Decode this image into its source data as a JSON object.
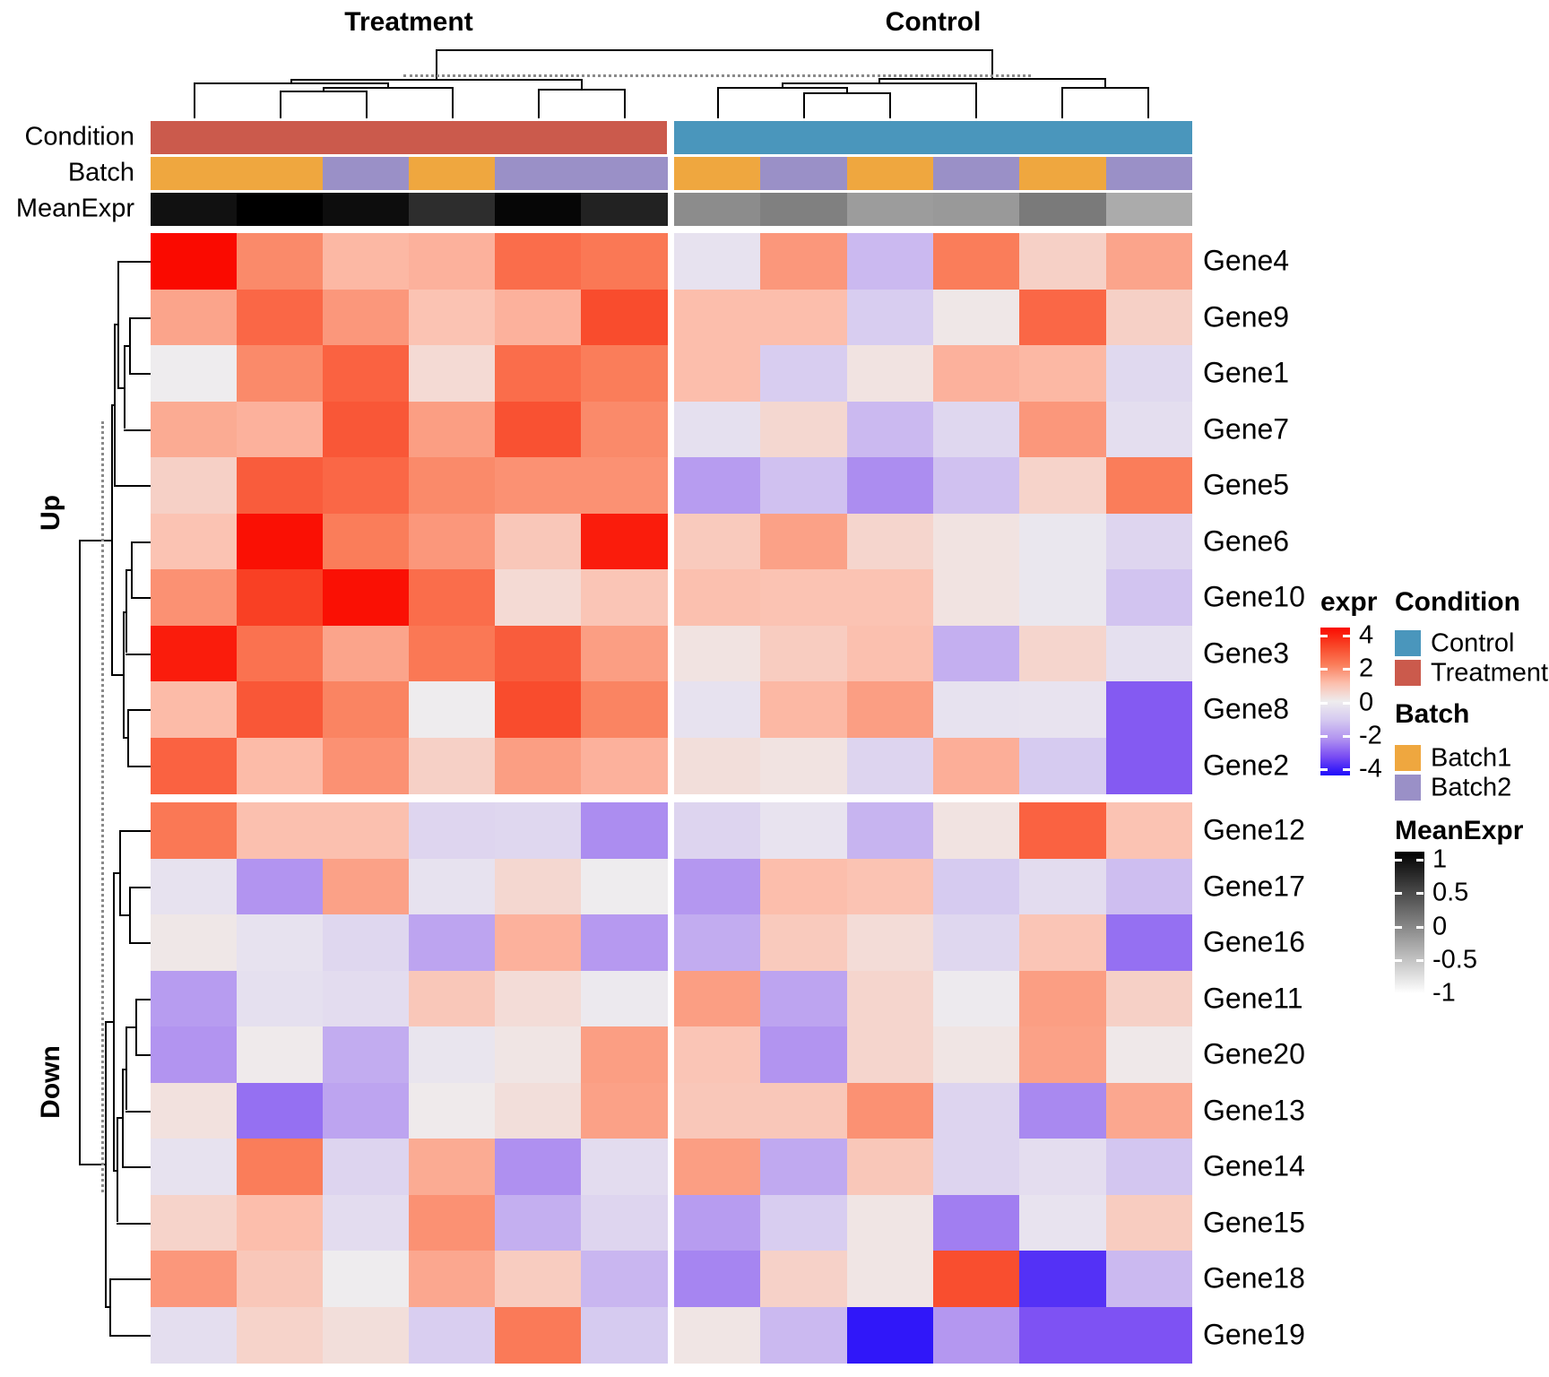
{
  "chart_data": {
    "type": "heatmap",
    "value_name": "expr",
    "col_split": {
      "treatment_label": "Treatment",
      "control_label": "Control"
    },
    "row_split": {
      "up_label": "Up",
      "down_label": "Down"
    },
    "annotations": {
      "labels": [
        "Condition",
        "Batch",
        "MeanExpr"
      ],
      "condition": {
        "treatment": "Treatment",
        "control": "Control"
      },
      "batch": {
        "treatment": [
          "Batch1",
          "Batch1",
          "Batch2",
          "Batch1",
          "Batch2",
          "Batch2"
        ],
        "control": [
          "Batch1",
          "Batch2",
          "Batch1",
          "Batch2",
          "Batch1",
          "Batch2"
        ]
      },
      "mean_expr": {
        "treatment": [
          0.87,
          1.0,
          0.9,
          0.65,
          0.95,
          0.73
        ],
        "control": [
          -0.1,
          0.0,
          -0.22,
          -0.2,
          0.04,
          -0.34
        ]
      }
    },
    "rows": [
      {
        "gene": "Gene4",
        "group": "Up",
        "treatment": [
          4.0,
          1.8,
          1.1,
          1.2,
          2.3,
          2.1
        ],
        "control": [
          -0.3,
          1.6,
          -1.3,
          2.0,
          0.6,
          1.4
        ]
      },
      {
        "gene": "Gene9",
        "group": "Up",
        "treatment": [
          1.4,
          2.4,
          1.6,
          0.9,
          1.2,
          2.9
        ],
        "control": [
          1.0,
          1.0,
          -0.9,
          0.1,
          2.4,
          0.6
        ]
      },
      {
        "gene": "Gene1",
        "group": "Up",
        "treatment": [
          0.0,
          1.8,
          2.5,
          0.4,
          2.3,
          2.0
        ],
        "control": [
          1.0,
          -0.9,
          0.2,
          1.2,
          1.1,
          -0.55
        ]
      },
      {
        "gene": "Gene7",
        "group": "Up",
        "treatment": [
          1.3,
          1.2,
          2.7,
          1.5,
          2.8,
          1.8
        ],
        "control": [
          -0.35,
          0.45,
          -1.3,
          -0.6,
          1.6,
          -0.4
        ]
      },
      {
        "gene": "Gene5",
        "group": "Up",
        "treatment": [
          0.6,
          2.6,
          2.4,
          1.8,
          1.7,
          1.7
        ],
        "control": [
          -1.85,
          -1.15,
          -2.1,
          -1.15,
          0.55,
          2.0
        ]
      },
      {
        "gene": "Gene6",
        "group": "Up",
        "treatment": [
          0.9,
          3.9,
          2.0,
          1.6,
          0.8,
          3.7
        ],
        "control": [
          0.75,
          1.45,
          0.5,
          0.2,
          -0.15,
          -0.65
        ]
      },
      {
        "gene": "Gene10",
        "group": "Up",
        "treatment": [
          1.7,
          3.1,
          3.9,
          2.3,
          0.4,
          0.85
        ],
        "control": [
          0.95,
          0.9,
          0.9,
          0.2,
          -0.15,
          -1.1
        ]
      },
      {
        "gene": "Gene3",
        "group": "Up",
        "treatment": [
          3.7,
          2.2,
          1.4,
          2.1,
          2.6,
          1.5
        ],
        "control": [
          0.2,
          0.7,
          0.95,
          -1.5,
          0.5,
          -0.35
        ]
      },
      {
        "gene": "Gene8",
        "group": "Up",
        "treatment": [
          1.05,
          2.7,
          1.9,
          0.0,
          2.9,
          1.9
        ],
        "control": [
          -0.3,
          1.1,
          1.5,
          -0.3,
          -0.25,
          -2.8
        ]
      },
      {
        "gene": "Gene2",
        "group": "Up",
        "treatment": [
          2.5,
          1.05,
          1.7,
          0.6,
          1.5,
          1.2
        ],
        "control": [
          0.3,
          0.2,
          -0.7,
          1.25,
          -0.95,
          -2.8
        ]
      },
      {
        "gene": "Gene12",
        "group": "Down",
        "treatment": [
          2.1,
          0.95,
          0.95,
          -0.65,
          -0.6,
          -2.1
        ],
        "control": [
          -0.7,
          -0.25,
          -1.4,
          0.2,
          2.5,
          0.9
        ]
      },
      {
        "gene": "Gene17",
        "group": "Down",
        "treatment": [
          -0.3,
          -2.0,
          1.45,
          -0.3,
          0.45,
          0.0
        ],
        "control": [
          -1.95,
          1.0,
          0.9,
          -0.95,
          -0.45,
          -1.2
        ]
      },
      {
        "gene": "Gene16",
        "group": "Down",
        "treatment": [
          0.1,
          -0.3,
          -0.6,
          -1.7,
          1.2,
          -1.9
        ],
        "control": [
          -1.55,
          0.75,
          0.35,
          -0.6,
          0.85,
          -2.5
        ]
      },
      {
        "gene": "Gene11",
        "group": "Down",
        "treatment": [
          -1.85,
          -0.35,
          -0.45,
          0.8,
          0.35,
          -0.1
        ],
        "control": [
          1.5,
          -1.7,
          0.5,
          -0.05,
          1.5,
          0.6
        ]
      },
      {
        "gene": "Gene20",
        "group": "Down",
        "treatment": [
          -2.0,
          0.05,
          -1.55,
          -0.2,
          0.15,
          1.5
        ],
        "control": [
          0.85,
          -2.0,
          0.5,
          0.15,
          1.45,
          0.08
        ]
      },
      {
        "gene": "Gene13",
        "group": "Down",
        "treatment": [
          0.25,
          -2.5,
          -1.7,
          0.05,
          0.3,
          1.45
        ],
        "control": [
          0.8,
          0.8,
          1.7,
          -0.68,
          -2.15,
          1.35
        ]
      },
      {
        "gene": "Gene14",
        "group": "Down",
        "treatment": [
          -0.3,
          2.0,
          -0.7,
          1.3,
          -2.05,
          -0.45
        ],
        "control": [
          1.5,
          -1.6,
          0.8,
          -0.68,
          -0.42,
          -1.05
        ]
      },
      {
        "gene": "Gene15",
        "group": "Down",
        "treatment": [
          0.55,
          1.0,
          -0.45,
          1.7,
          -1.5,
          -0.65
        ],
        "control": [
          -1.85,
          -0.9,
          0.15,
          -2.3,
          -0.25,
          0.7
        ]
      },
      {
        "gene": "Gene18",
        "group": "Down",
        "treatment": [
          1.6,
          0.8,
          0.0,
          1.35,
          0.7,
          -1.35
        ],
        "control": [
          -2.2,
          0.58,
          0.15,
          2.85,
          -3.4,
          -1.3
        ]
      },
      {
        "gene": "Gene19",
        "group": "Down",
        "treatment": [
          -0.4,
          0.55,
          0.3,
          -0.85,
          2.05,
          -0.95
        ],
        "control": [
          0.15,
          -1.3,
          -3.8,
          -1.95,
          -2.9,
          -2.9
        ]
      }
    ],
    "color_scale": {
      "title": "expr",
      "domain": [
        -4,
        4
      ],
      "ticks": [
        "4",
        "2",
        "0",
        "-2",
        "-4"
      ],
      "tick_values": [
        4,
        2,
        0,
        -2,
        -4
      ],
      "stop_values": [
        -4,
        -3,
        -2,
        -1,
        0,
        1,
        2,
        3,
        4
      ],
      "stop_colors": [
        "#1E0AFA",
        "#784BF3",
        "#B294F0",
        "#D5C9F0",
        "#EEECEE",
        "#FCBEAC",
        "#FA7D5A",
        "#F94628",
        "#FA0A00"
      ]
    },
    "mean_scale": {
      "title": "MeanExpr",
      "domain": [
        -1,
        1
      ],
      "ticks": [
        "1",
        "0.5",
        "0",
        "-0.5",
        "-1"
      ],
      "tick_values": [
        1,
        0.5,
        0,
        -0.5,
        -1
      ],
      "top_color": "#000000",
      "bottom_color": "#ffffff"
    },
    "legends": {
      "expr_title": "expr",
      "condition_title": "Condition",
      "condition_items": [
        {
          "label": "Control",
          "color": "#4A96BC"
        },
        {
          "label": "Treatment",
          "color": "#CB5A4C"
        }
      ],
      "batch_title": "Batch",
      "batch_items": [
        {
          "label": "Batch1",
          "color": "#EFA73F"
        },
        {
          "label": "Batch2",
          "color": "#9A90C7"
        }
      ],
      "meanexpr_title": "MeanExpr"
    },
    "colors": {
      "condition_treatment": "#CB5A4C",
      "condition_control": "#4A96BC",
      "batch1": "#EFA73F",
      "batch2": "#9A90C7"
    },
    "dendrograms": {
      "columns": [
        [
          216,
          92,
          216,
          132
        ],
        [
          312,
          101,
          312,
          132
        ],
        [
          408,
          101,
          408,
          132
        ],
        [
          504,
          97,
          504,
          132
        ],
        [
          600,
          99,
          600,
          132
        ],
        [
          696,
          99,
          696,
          132
        ],
        [
          312,
          101,
          408,
          101
        ],
        [
          360,
          97,
          360,
          101
        ],
        [
          360,
          97,
          504,
          97
        ],
        [
          432,
          92,
          432,
          97
        ],
        [
          216,
          92,
          432,
          92
        ],
        [
          600,
          99,
          696,
          99
        ],
        [
          324,
          88,
          324,
          92
        ],
        [
          648,
          88,
          648,
          99
        ],
        [
          324,
          88,
          648,
          88
        ],
        [
          486,
          55,
          486,
          88
        ],
        [
          486,
          55,
          1106,
          55
        ],
        [
          1106,
          55,
          1106,
          87
        ],
        [
          800,
          97,
          800,
          132
        ],
        [
          896,
          103,
          896,
          132
        ],
        [
          992,
          103,
          992,
          132
        ],
        [
          1088,
          92,
          1088,
          132
        ],
        [
          1184,
          97,
          1184,
          132
        ],
        [
          1280,
          97,
          1280,
          132
        ],
        [
          896,
          103,
          992,
          103
        ],
        [
          944,
          97,
          944,
          103
        ],
        [
          800,
          97,
          944,
          97
        ],
        [
          872,
          92,
          872,
          97
        ],
        [
          872,
          92,
          1088,
          92
        ],
        [
          1184,
          97,
          1280,
          97
        ],
        [
          980,
          87,
          980,
          92
        ],
        [
          1232,
          87,
          1232,
          97
        ],
        [
          980,
          87,
          1232,
          87
        ]
      ],
      "rows": [
        [
          131,
          291,
          168,
          291
        ],
        [
          144,
          353.5,
          168,
          353.5
        ],
        [
          144,
          416,
          168,
          416
        ],
        [
          138,
          478.5,
          168,
          478.5
        ],
        [
          127,
          541,
          168,
          541
        ],
        [
          146,
          603.5,
          168,
          603.5
        ],
        [
          146,
          666,
          168,
          666
        ],
        [
          140,
          728.5,
          168,
          728.5
        ],
        [
          142,
          791,
          168,
          791
        ],
        [
          142,
          853.5,
          168,
          853.5
        ],
        [
          144,
          353.5,
          144,
          416
        ],
        [
          138,
          384.8,
          144,
          384.8
        ],
        [
          138,
          384.8,
          138,
          478.5
        ],
        [
          131,
          431.6,
          138,
          431.6
        ],
        [
          131,
          291,
          131,
          431.6
        ],
        [
          127,
          361.3,
          131,
          361.3
        ],
        [
          127,
          361.3,
          127,
          541
        ],
        [
          146,
          603.5,
          146,
          666
        ],
        [
          140,
          634.8,
          146,
          634.8
        ],
        [
          140,
          634.8,
          140,
          728.5
        ],
        [
          142,
          791,
          142,
          853.5
        ],
        [
          137,
          681.6,
          140,
          681.6
        ],
        [
          137,
          822.3,
          142,
          822.3
        ],
        [
          137,
          681.6,
          137,
          822.3
        ],
        [
          124,
          451.2,
          127,
          451.2
        ],
        [
          124,
          751.9,
          137,
          751.9
        ],
        [
          124,
          451.2,
          124,
          751.9
        ],
        [
          133,
          926,
          168,
          926
        ],
        [
          144,
          988.5,
          168,
          988.5
        ],
        [
          144,
          1051,
          168,
          1051
        ],
        [
          151,
          1113.5,
          168,
          1113.5
        ],
        [
          151,
          1176,
          168,
          1176
        ],
        [
          140,
          1238.5,
          168,
          1238.5
        ],
        [
          136,
          1301,
          168,
          1301
        ],
        [
          130,
          1363.5,
          168,
          1363.5
        ],
        [
          122,
          1426,
          168,
          1426
        ],
        [
          122,
          1488.5,
          168,
          1488.5
        ],
        [
          144,
          988.5,
          144,
          1051
        ],
        [
          133,
          1019.8,
          144,
          1019.8
        ],
        [
          133,
          926,
          133,
          1019.8
        ],
        [
          151,
          1113.5,
          151,
          1176
        ],
        [
          140,
          1144.8,
          151,
          1144.8
        ],
        [
          140,
          1144.8,
          140,
          1238.5
        ],
        [
          136,
          1191.6,
          140,
          1191.6
        ],
        [
          136,
          1191.6,
          136,
          1301
        ],
        [
          130,
          1246.3,
          136,
          1246.3
        ],
        [
          130,
          1246.3,
          130,
          1363.5
        ],
        [
          126,
          972.9,
          133,
          972.9
        ],
        [
          126,
          1304.9,
          130,
          1304.9
        ],
        [
          126,
          972.9,
          126,
          1304.9
        ],
        [
          122,
          1426,
          122,
          1488.5
        ],
        [
          117,
          1138.9,
          126,
          1138.9
        ],
        [
          117,
          1457.3,
          122,
          1457.3
        ],
        [
          117,
          1138.9,
          117,
          1457.3
        ],
        [
          88,
          601.5,
          124,
          601.5
        ],
        [
          88,
          1298,
          117,
          1298
        ],
        [
          88,
          601.5,
          88,
          1298
        ]
      ],
      "col_cut_line": [
        450,
        83,
        1150,
        83
      ],
      "row_cut_line": [
        113,
        470,
        113,
        1330
      ]
    }
  }
}
